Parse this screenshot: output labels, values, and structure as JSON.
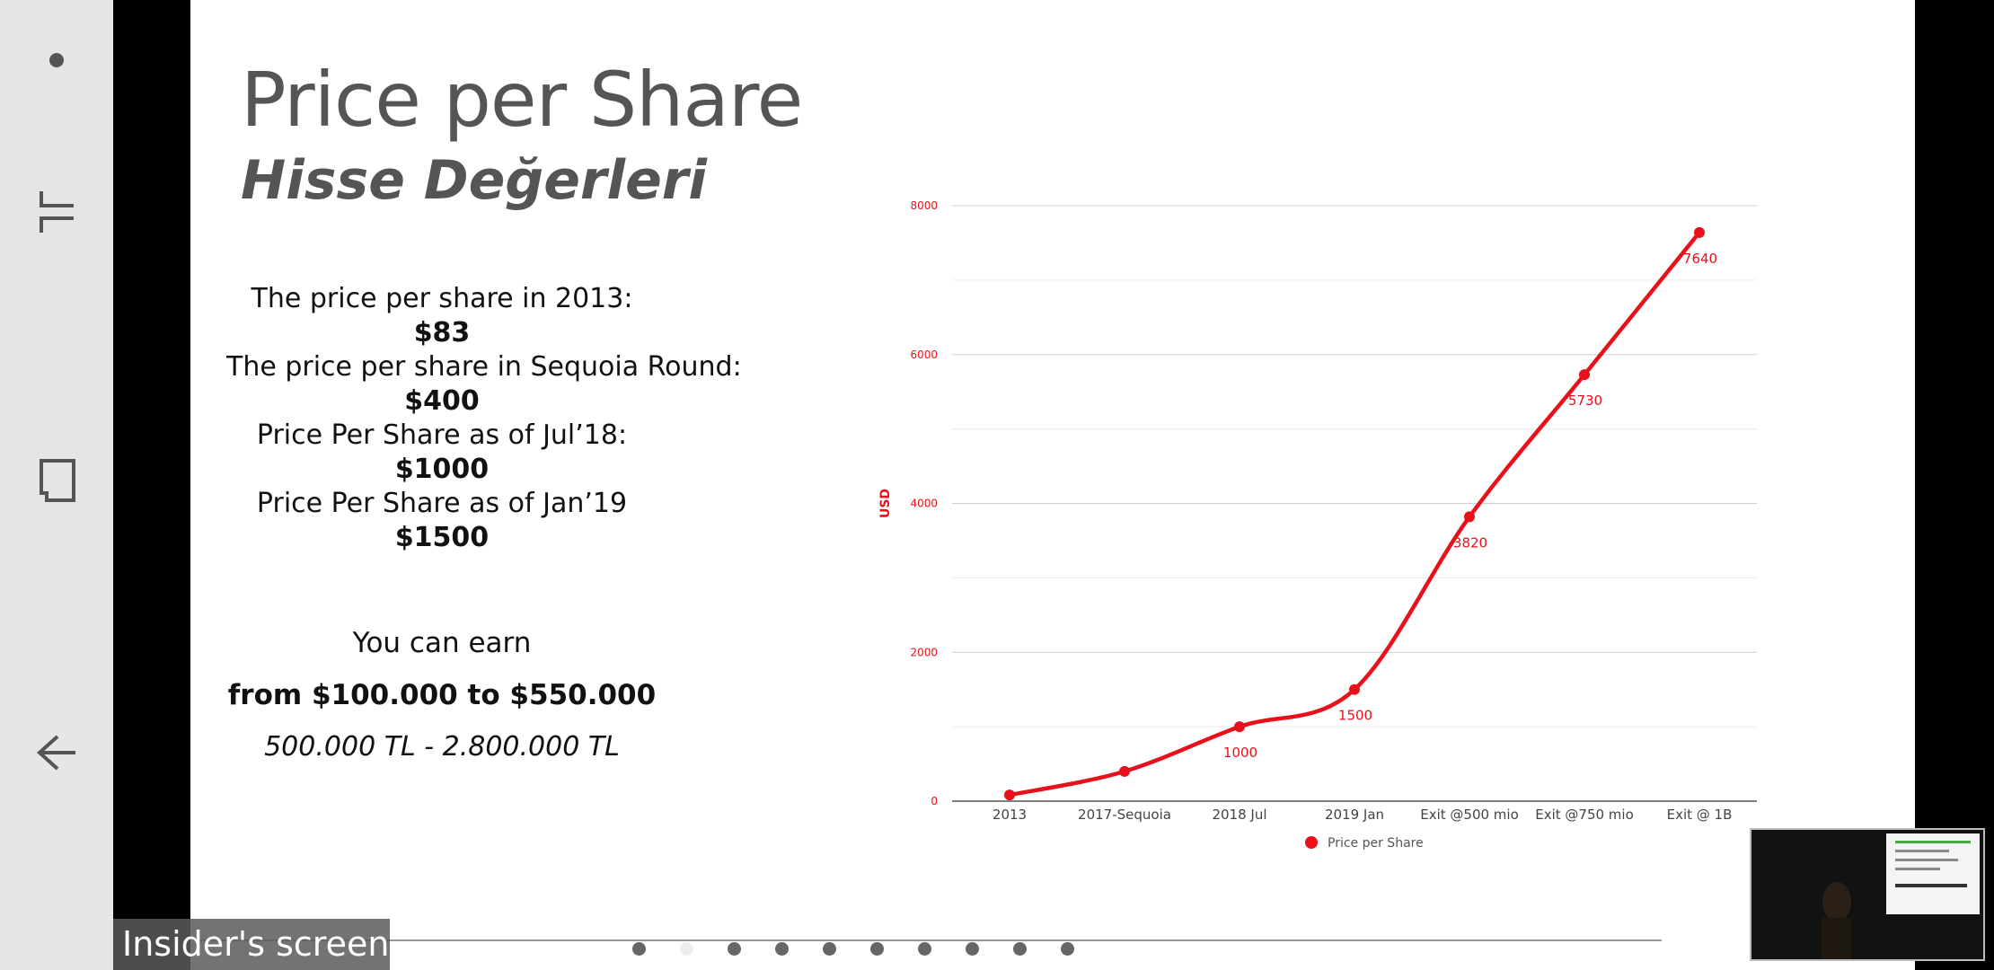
{
  "overlay": {
    "screen_label": "Insider's screen"
  },
  "slide": {
    "title": "Price per Share",
    "subtitle": "Hisse Değerleri",
    "lines": [
      {
        "label": "The price per share in 2013:",
        "value": "$83"
      },
      {
        "label": "The price per share in Sequoia Round:",
        "value": "$400"
      },
      {
        "label": "Price Per Share as of Jul’18:",
        "value": "$1000"
      },
      {
        "label": "Price Per Share as of Jan’19",
        "value": "$1500"
      }
    ],
    "earn_line1": "You can earn",
    "earn_line2": "from $100.000 to  $550.000",
    "earn_line3": "500.000 TL - 2.800.000 TL"
  },
  "chart_data": {
    "type": "line",
    "categories": [
      "2013",
      "2017-Sequoia",
      "2018 Jul",
      "2019 Jan",
      "Exit @500 mio",
      "Exit @750 mio",
      "Exit @ 1B"
    ],
    "series": [
      {
        "name": "Price per Share",
        "values": [
          83,
          400,
          1000,
          1500,
          3820,
          5730,
          7640
        ]
      }
    ],
    "data_labels": [
      "",
      "",
      "1000",
      "1500",
      "3820",
      "5730",
      "7640"
    ],
    "ylabel": "USD",
    "yticks": [
      "0",
      "2000",
      "4000",
      "6000",
      "8000"
    ],
    "ylim": [
      0,
      8000
    ],
    "legend_position": "bottom",
    "color": "#e8101a"
  },
  "pagination": {
    "count": 10,
    "active": 1
  }
}
